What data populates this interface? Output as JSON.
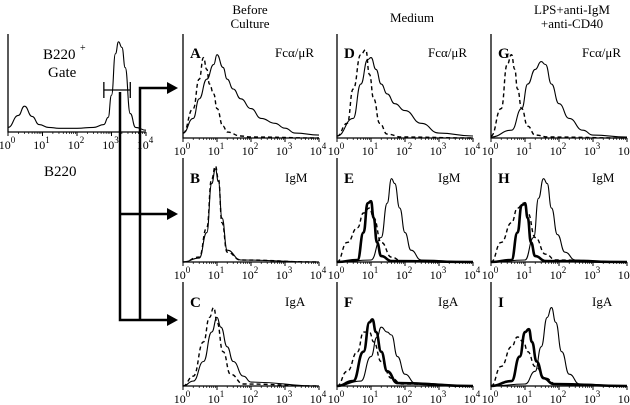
{
  "figure": {
    "column_headers": [
      "Before Culture",
      "Medium",
      "LPS+anti-IgM +anti-CD40"
    ],
    "gate_panel": {
      "label": "B220+ Gate",
      "xlabel": "B220"
    },
    "stain_labels": [
      "Fcα/μR",
      "IgM",
      "IgA"
    ]
  },
  "chart_data": [
    {
      "type": "line",
      "panel": "gate",
      "title": "",
      "xlabel": "B220",
      "x_scale": "log",
      "xlim": [
        1,
        10000
      ],
      "x_ticks": [
        "10⁰",
        "10¹",
        "10²",
        "10³",
        "10⁴"
      ],
      "annotations": [
        "B220⁺",
        "Gate"
      ],
      "series": [
        {
          "style": "solid",
          "x": [
            1,
            2,
            3,
            5,
            8,
            15,
            30,
            100,
            300,
            600,
            800,
            1000,
            1300,
            1600,
            2000,
            2500,
            3500,
            5000,
            10000
          ],
          "y": [
            0.05,
            0.18,
            0.28,
            0.17,
            0.08,
            0.05,
            0.04,
            0.04,
            0.05,
            0.08,
            0.16,
            0.4,
            0.85,
            0.98,
            0.92,
            0.7,
            0.2,
            0.05,
            0.02
          ]
        }
      ],
      "gate_range": [
        600,
        3500
      ]
    },
    {
      "type": "line",
      "panel": "A",
      "title": "Fcα/μR",
      "x_scale": "log",
      "xlim": [
        1,
        10000
      ],
      "series": [
        {
          "style": "dashed",
          "x": [
            1,
            2,
            3,
            4,
            5,
            6,
            8,
            10,
            15,
            20,
            50,
            100,
            10000
          ],
          "y": [
            0.05,
            0.3,
            0.6,
            0.82,
            0.7,
            0.55,
            0.45,
            0.3,
            0.12,
            0.06,
            0.02,
            0.01,
            0
          ]
        },
        {
          "style": "solid",
          "x": [
            1,
            2,
            3,
            5,
            8,
            10,
            15,
            20,
            30,
            50,
            100,
            200,
            500,
            1000,
            2000,
            10000
          ],
          "y": [
            0.05,
            0.2,
            0.4,
            0.6,
            0.75,
            0.85,
            0.72,
            0.6,
            0.5,
            0.4,
            0.3,
            0.2,
            0.15,
            0.1,
            0.05,
            0.03
          ]
        }
      ]
    },
    {
      "type": "line",
      "panel": "B",
      "title": "IgM",
      "x_scale": "log",
      "xlim": [
        1,
        10000
      ],
      "series": [
        {
          "style": "dashed",
          "x": [
            1,
            3,
            5,
            7,
            9,
            11,
            14,
            20,
            50,
            10000
          ],
          "y": [
            0,
            0.05,
            0.35,
            0.85,
            0.98,
            0.85,
            0.4,
            0.1,
            0.02,
            0
          ]
        },
        {
          "style": "solid",
          "x": [
            1,
            3,
            5,
            7,
            9,
            11,
            14,
            20,
            50,
            10000
          ],
          "y": [
            0,
            0.04,
            0.3,
            0.8,
            0.95,
            0.82,
            0.45,
            0.12,
            0.02,
            0
          ]
        }
      ]
    },
    {
      "type": "line",
      "panel": "C",
      "title": "IgA",
      "x_scale": "log",
      "xlim": [
        1,
        10000
      ],
      "series": [
        {
          "style": "dashed",
          "x": [
            1,
            2,
            4,
            6,
            8,
            10,
            15,
            25,
            60,
            10000
          ],
          "y": [
            0,
            0.1,
            0.45,
            0.7,
            0.8,
            0.65,
            0.35,
            0.12,
            0.02,
            0
          ]
        },
        {
          "style": "solid",
          "x": [
            1,
            2,
            4,
            7,
            10,
            13,
            20,
            30,
            60,
            100,
            10000
          ],
          "y": [
            0,
            0.05,
            0.25,
            0.55,
            0.7,
            0.6,
            0.4,
            0.25,
            0.1,
            0.04,
            0
          ]
        }
      ]
    },
    {
      "type": "line",
      "panel": "D",
      "title": "Fcα/μR",
      "x_scale": "log",
      "xlim": [
        1,
        10000
      ],
      "series": [
        {
          "style": "dashed",
          "x": [
            1,
            2,
            3,
            5,
            7,
            9,
            12,
            18,
            30,
            80,
            10000
          ],
          "y": [
            0.02,
            0.15,
            0.5,
            0.85,
            0.9,
            0.65,
            0.4,
            0.15,
            0.04,
            0.01,
            0
          ]
        },
        {
          "style": "solid",
          "x": [
            1,
            3,
            5,
            8,
            10,
            14,
            20,
            30,
            50,
            100,
            300,
            1000,
            10000
          ],
          "y": [
            0.02,
            0.2,
            0.55,
            0.8,
            0.82,
            0.7,
            0.55,
            0.45,
            0.35,
            0.28,
            0.15,
            0.05,
            0.02
          ]
        }
      ]
    },
    {
      "type": "line",
      "panel": "E",
      "title": "IgM",
      "x_scale": "log",
      "xlim": [
        1,
        10000
      ],
      "series": [
        {
          "style": "dashed",
          "x": [
            1,
            2,
            4,
            6,
            9,
            12,
            20,
            40,
            80,
            10000
          ],
          "y": [
            0,
            0.2,
            0.35,
            0.5,
            0.55,
            0.45,
            0.2,
            0.05,
            0.01,
            0
          ]
        },
        {
          "style": "bold",
          "x": [
            1,
            4,
            6,
            8,
            10,
            12,
            15,
            20,
            40,
            10000
          ],
          "y": [
            0,
            0.02,
            0.3,
            0.6,
            0.62,
            0.45,
            0.2,
            0.06,
            0.01,
            0
          ]
        },
        {
          "style": "solid",
          "x": [
            1,
            10,
            20,
            30,
            40,
            50,
            70,
            100,
            150,
            300,
            10000
          ],
          "y": [
            0,
            0.02,
            0.25,
            0.6,
            0.85,
            0.8,
            0.55,
            0.3,
            0.12,
            0.02,
            0
          ]
        }
      ]
    },
    {
      "type": "line",
      "panel": "F",
      "title": "IgA",
      "x_scale": "log",
      "xlim": [
        1,
        10000
      ],
      "series": [
        {
          "style": "dashed",
          "x": [
            1,
            2,
            4,
            6,
            9,
            12,
            20,
            40,
            80,
            10000
          ],
          "y": [
            0,
            0.15,
            0.35,
            0.55,
            0.55,
            0.45,
            0.25,
            0.08,
            0.02,
            0
          ]
        },
        {
          "style": "bold",
          "x": [
            1,
            3,
            6,
            9,
            11,
            14,
            20,
            30,
            60,
            10000
          ],
          "y": [
            0,
            0.05,
            0.35,
            0.65,
            0.68,
            0.55,
            0.35,
            0.15,
            0.03,
            0
          ]
        },
        {
          "style": "solid",
          "x": [
            1,
            5,
            10,
            15,
            20,
            30,
            40,
            60,
            100,
            200,
            10000
          ],
          "y": [
            0,
            0.05,
            0.3,
            0.5,
            0.6,
            0.55,
            0.52,
            0.3,
            0.12,
            0.03,
            0
          ]
        }
      ]
    },
    {
      "type": "line",
      "panel": "G",
      "title": "Fcα/μR",
      "x_scale": "log",
      "xlim": [
        1,
        10000
      ],
      "series": [
        {
          "style": "dashed",
          "x": [
            1,
            2,
            3,
            4,
            5,
            6,
            8,
            12,
            20,
            50,
            10000
          ],
          "y": [
            0.02,
            0.3,
            0.75,
            0.85,
            0.7,
            0.5,
            0.3,
            0.12,
            0.03,
            0.01,
            0
          ]
        },
        {
          "style": "solid",
          "x": [
            1,
            4,
            8,
            12,
            20,
            30,
            40,
            60,
            100,
            200,
            500,
            1000,
            10000
          ],
          "y": [
            0.01,
            0.08,
            0.3,
            0.55,
            0.7,
            0.78,
            0.75,
            0.55,
            0.35,
            0.2,
            0.08,
            0.03,
            0.01
          ]
        }
      ]
    },
    {
      "type": "line",
      "panel": "H",
      "title": "IgM",
      "x_scale": "log",
      "xlim": [
        1,
        10000
      ],
      "series": [
        {
          "style": "dashed",
          "x": [
            1,
            2,
            4,
            6,
            9,
            12,
            20,
            40,
            80,
            10000
          ],
          "y": [
            0,
            0.2,
            0.4,
            0.55,
            0.6,
            0.5,
            0.25,
            0.08,
            0.02,
            0
          ]
        },
        {
          "style": "bold",
          "x": [
            1,
            4,
            6,
            8,
            10,
            12,
            15,
            20,
            40,
            10000
          ],
          "y": [
            0,
            0.02,
            0.3,
            0.58,
            0.6,
            0.45,
            0.2,
            0.06,
            0.01,
            0
          ]
        },
        {
          "style": "solid",
          "x": [
            1,
            10,
            18,
            25,
            35,
            45,
            60,
            90,
            150,
            300,
            10000
          ],
          "y": [
            0,
            0.02,
            0.25,
            0.65,
            0.85,
            0.8,
            0.55,
            0.28,
            0.1,
            0.02,
            0
          ]
        }
      ]
    },
    {
      "type": "line",
      "panel": "I",
      "title": "IgA",
      "x_scale": "log",
      "xlim": [
        1,
        10000
      ],
      "series": [
        {
          "style": "dashed",
          "x": [
            1,
            2,
            4,
            6,
            9,
            12,
            20,
            40,
            80,
            10000
          ],
          "y": [
            0,
            0.2,
            0.4,
            0.5,
            0.45,
            0.35,
            0.2,
            0.08,
            0.02,
            0
          ]
        },
        {
          "style": "bold",
          "x": [
            1,
            4,
            7,
            10,
            13,
            16,
            22,
            35,
            70,
            10000
          ],
          "y": [
            0,
            0.05,
            0.3,
            0.55,
            0.58,
            0.45,
            0.25,
            0.08,
            0.02,
            0
          ]
        },
        {
          "style": "solid",
          "x": [
            1,
            10,
            20,
            30,
            45,
            60,
            80,
            120,
            200,
            400,
            10000
          ],
          "y": [
            0,
            0.02,
            0.15,
            0.4,
            0.7,
            0.8,
            0.65,
            0.35,
            0.12,
            0.02,
            0
          ]
        }
      ]
    }
  ]
}
